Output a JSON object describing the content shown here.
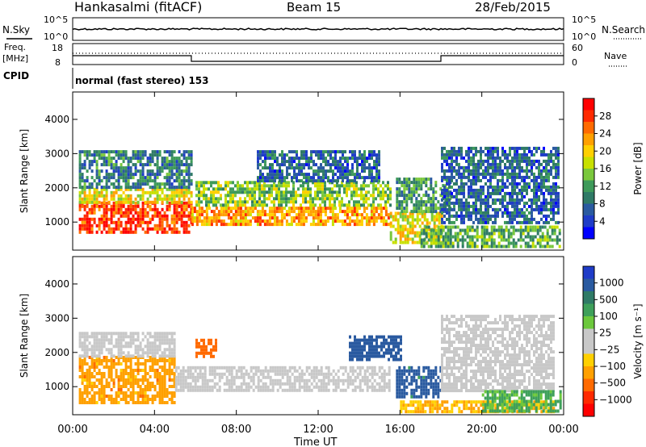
{
  "header": {
    "station": "Hankasalmi (fitACF)",
    "beam": "Beam 15",
    "date": "28/Feb/2015"
  },
  "left_labels": {
    "nsky": "N.Sky",
    "freq_line1": "Freq.",
    "freq_line2": "[MHz]",
    "cpid": "CPID"
  },
  "right_labels": {
    "nsearch": "N.Search",
    "nave": "Nave"
  },
  "noise_panel": {
    "left_ticks": [
      "10^5",
      "10^0"
    ],
    "right_ticks": [
      "10^5",
      "10^0"
    ]
  },
  "freq_panel": {
    "left_ticks": [
      "18",
      "8"
    ],
    "right_ticks": [
      "60",
      "0"
    ]
  },
  "cpid_text": "normal (fast stereo) 153",
  "power_colorbar": {
    "title": "Power [dB]",
    "ticks": [
      "28",
      "24",
      "20",
      "16",
      "12",
      "8",
      "4"
    ],
    "colors": [
      "#ff0000",
      "#ff2a00",
      "#ff6a00",
      "#ffa000",
      "#ffd000",
      "#c8e000",
      "#7ac83c",
      "#3e9a5a",
      "#2f7a66",
      "#2a5aa0",
      "#1f3cc8",
      "#0000ff"
    ]
  },
  "velocity_colorbar": {
    "title": "Velocity [m s⁻¹]",
    "ticks": [
      "1000",
      "500",
      "100",
      "25",
      "−25",
      "−100",
      "−500",
      "−1000"
    ],
    "colors": [
      "#1f3cc8",
      "#2a5aa0",
      "#2f7a66",
      "#3ea05a",
      "#6cc83c",
      "#c8c8c8",
      "#c8c8c8",
      "#ffd000",
      "#ffa000",
      "#ff6a00",
      "#ff2a00",
      "#ff0000"
    ]
  },
  "chart_data": [
    {
      "type": "heatmap",
      "title": "Power",
      "xlabel": "Time UT",
      "ylabel": "Slant Range [km]",
      "x_ticks": [
        "00:00",
        "04:00",
        "08:00",
        "12:00",
        "16:00",
        "20:00",
        "00:00"
      ],
      "x_range_hours": [
        0,
        24
      ],
      "y_ticks": [
        1000,
        2000,
        3000,
        4000
      ],
      "ylim": [
        180,
        4800
      ],
      "colorbar_ticks": [
        4,
        8,
        12,
        16,
        20,
        24,
        28
      ],
      "color_range": [
        0,
        30
      ],
      "regions": [
        {
          "t0": 0.3,
          "t1": 5.8,
          "r0": 700,
          "r1": 1600,
          "value": 27
        },
        {
          "t0": 0.3,
          "t1": 5.8,
          "r0": 1600,
          "r1": 2000,
          "value": 18
        },
        {
          "t0": 0.3,
          "t1": 5.8,
          "r0": 2000,
          "r1": 3100,
          "value": 8
        },
        {
          "t0": 5.8,
          "t1": 15.5,
          "r0": 900,
          "r1": 1450,
          "value": 22
        },
        {
          "t0": 6.0,
          "t1": 15.5,
          "r0": 1450,
          "r1": 2200,
          "value": 14
        },
        {
          "t0": 9.0,
          "t1": 15.0,
          "r0": 2200,
          "r1": 3100,
          "value": 6
        },
        {
          "t0": 15.5,
          "t1": 18.0,
          "r0": 400,
          "r1": 1300,
          "value": 18
        },
        {
          "t0": 15.8,
          "t1": 18.5,
          "r0": 1300,
          "r1": 2300,
          "value": 10
        },
        {
          "t0": 17.0,
          "t1": 23.8,
          "r0": 300,
          "r1": 900,
          "value": 12
        },
        {
          "t0": 18.0,
          "t1": 23.8,
          "r0": 1000,
          "r1": 3200,
          "value": 6
        }
      ]
    },
    {
      "type": "heatmap",
      "title": "Velocity",
      "xlabel": "Time UT",
      "ylabel": "Slant Range [km]",
      "x_ticks": [
        "00:00",
        "04:00",
        "08:00",
        "12:00",
        "16:00",
        "20:00",
        "00:00"
      ],
      "x_range_hours": [
        0,
        24
      ],
      "y_ticks": [
        1000,
        2000,
        3000,
        4000
      ],
      "ylim": [
        180,
        4800
      ],
      "colorbar_ticks": [
        1000,
        500,
        100,
        25,
        -25,
        -100,
        -500,
        -1000
      ],
      "regions": [
        {
          "t0": 0.3,
          "t1": 5.0,
          "r0": 500,
          "r1": 1900,
          "value": -150
        },
        {
          "t0": 0.3,
          "t1": 5.0,
          "r0": 1900,
          "r1": 2600,
          "value": 0
        },
        {
          "t0": 5.0,
          "t1": 15.5,
          "r0": 900,
          "r1": 1600,
          "value": 0
        },
        {
          "t0": 6.0,
          "t1": 7.0,
          "r0": 1900,
          "r1": 2400,
          "value": -300
        },
        {
          "t0": 13.5,
          "t1": 16.0,
          "r0": 1800,
          "r1": 2500,
          "value": 200
        },
        {
          "t0": 15.8,
          "t1": 18.0,
          "r0": 700,
          "r1": 1600,
          "value": 150
        },
        {
          "t0": 16.0,
          "t1": 23.5,
          "r0": 300,
          "r1": 600,
          "value": -100
        },
        {
          "t0": 18.0,
          "t1": 23.5,
          "r0": 900,
          "r1": 3100,
          "value": 0
        },
        {
          "t0": 20.0,
          "t1": 23.8,
          "r0": 300,
          "r1": 900,
          "value": 60
        }
      ]
    }
  ]
}
